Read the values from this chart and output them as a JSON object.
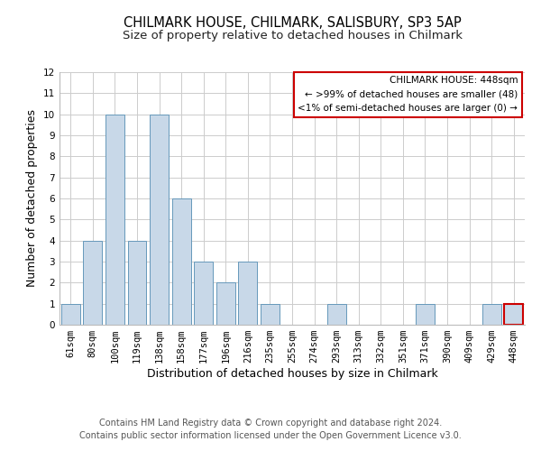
{
  "title": "CHILMARK HOUSE, CHILMARK, SALISBURY, SP3 5AP",
  "subtitle": "Size of property relative to detached houses in Chilmark",
  "xlabel": "Distribution of detached houses by size in Chilmark",
  "ylabel": "Number of detached properties",
  "categories": [
    "61sqm",
    "80sqm",
    "100sqm",
    "119sqm",
    "138sqm",
    "158sqm",
    "177sqm",
    "196sqm",
    "216sqm",
    "235sqm",
    "255sqm",
    "274sqm",
    "293sqm",
    "313sqm",
    "332sqm",
    "351sqm",
    "371sqm",
    "390sqm",
    "409sqm",
    "429sqm",
    "448sqm"
  ],
  "values": [
    1,
    4,
    10,
    4,
    10,
    6,
    3,
    2,
    3,
    1,
    0,
    0,
    1,
    0,
    0,
    0,
    1,
    0,
    0,
    1,
    1
  ],
  "bar_color": "#c8d8e8",
  "bar_edge_color": "#6699bb",
  "highlight_bar_index": 20,
  "highlight_bar_edge_color": "#cc0000",
  "ylim": [
    0,
    12
  ],
  "yticks": [
    0,
    1,
    2,
    3,
    4,
    5,
    6,
    7,
    8,
    9,
    10,
    11,
    12
  ],
  "legend_title": "CHILMARK HOUSE: 448sqm",
  "legend_line1": "← >99% of detached houses are smaller (48)",
  "legend_line2": "<1% of semi-detached houses are larger (0) →",
  "legend_box_edge_color": "#cc0000",
  "footer_line1": "Contains HM Land Registry data © Crown copyright and database right 2024.",
  "footer_line2": "Contains public sector information licensed under the Open Government Licence v3.0.",
  "grid_color": "#cccccc",
  "title_fontsize": 10.5,
  "subtitle_fontsize": 9.5,
  "axis_label_fontsize": 9,
  "tick_fontsize": 7.5,
  "legend_fontsize": 7.5,
  "footer_fontsize": 7
}
